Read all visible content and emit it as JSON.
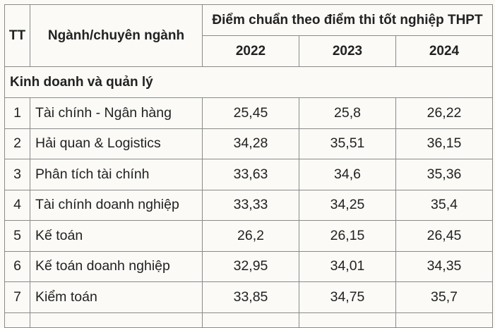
{
  "table": {
    "headers": {
      "tt": "TT",
      "major": "Ngành/chuyên ngành",
      "group": "Điểm chuẩn theo điểm thi tốt nghiệp THPT",
      "years": [
        "2022",
        "2023",
        "2024"
      ]
    },
    "section": "Kinh doanh và quản lý",
    "rows": [
      {
        "tt": "1",
        "name": "Tài chính - Ngân hàng",
        "y2022": "25,45",
        "y2023": "25,8",
        "y2024": "26,22"
      },
      {
        "tt": "2",
        "name": "Hải quan & Logistics",
        "y2022": "34,28",
        "y2023": "35,51",
        "y2024": "36,15"
      },
      {
        "tt": "3",
        "name": "Phân tích tài chính",
        "y2022": "33,63",
        "y2023": "34,6",
        "y2024": "35,36"
      },
      {
        "tt": "4",
        "name": "Tài chính doanh nghiệp",
        "y2022": "33,33",
        "y2023": "34,25",
        "y2024": "35,4"
      },
      {
        "tt": "5",
        "name": "Kế toán",
        "y2022": "26,2",
        "y2023": "26,15",
        "y2024": "26,45"
      },
      {
        "tt": "6",
        "name": "Kế toán doanh nghiệp",
        "y2022": "32,95",
        "y2023": "34,01",
        "y2024": "34,35"
      },
      {
        "tt": "7",
        "name": "Kiểm toán",
        "y2022": "33,85",
        "y2023": "34,75",
        "y2024": "35,7"
      }
    ]
  }
}
